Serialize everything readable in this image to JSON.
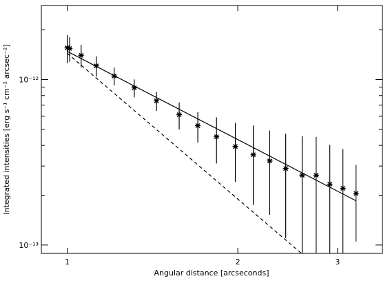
{
  "chart_data": {
    "type": "scatter",
    "xlabel": "Angular distance [arcseconds]",
    "ylabel": "Integrated intensities [erg s⁻¹ cm⁻² arcsec⁻²]",
    "xscale": "log",
    "yscale": "log",
    "xlim": [
      0.9,
      3.6
    ],
    "ylim": [
      8.9e-14,
      2.8e-12
    ],
    "xticks": [
      1,
      2,
      3
    ],
    "yticks": [
      {
        "value": 1e-13,
        "label": "10⁻¹³"
      },
      {
        "value": 1e-12,
        "label": "10⁻¹²"
      }
    ],
    "yminorticks": [
      2e-13,
      3e-13,
      4e-13,
      5e-13,
      6e-13,
      7e-13,
      8e-13,
      9e-13,
      2e-12
    ],
    "color": "#000000",
    "x": [
      1.0,
      1.01,
      1.058,
      1.125,
      1.21,
      1.313,
      1.437,
      1.576,
      1.7,
      1.834,
      1.98,
      2.13,
      2.277,
      2.43,
      2.598,
      2.75,
      2.907,
      3.066,
      3.234
    ],
    "values": [
      1.555e-12,
      1.54e-12,
      1.4e-12,
      1.21e-12,
      1.05e-12,
      8.91e-13,
      7.43e-13,
      6.13e-13,
      5.26e-13,
      4.51e-13,
      3.94e-13,
      3.51e-13,
      3.22e-13,
      2.9e-13,
      2.64e-13,
      2.64e-13,
      2.33e-13,
      2.2e-13,
      2.05e-13
    ],
    "yerr": [
      3e-13,
      2.6e-13,
      2.2e-13,
      1.7e-13,
      1.3e-13,
      1.1e-13,
      9.7e-14,
      1.14e-13,
      1.1e-13,
      1.4e-13,
      1.53e-13,
      1.76e-13,
      1.7e-13,
      1.8e-13,
      1.9e-13,
      1.86e-13,
      1.7e-13,
      1.6e-13,
      1e-13
    ],
    "lines": [
      {
        "x": [
          1.0,
          3.234
        ],
        "y": [
          1.48e-12,
          1.85e-13
        ],
        "dashed": false
      },
      {
        "x": [
          1.0,
          2.59
        ],
        "y": [
          1.44e-12,
          8.9e-14
        ],
        "dashed": true
      }
    ]
  }
}
